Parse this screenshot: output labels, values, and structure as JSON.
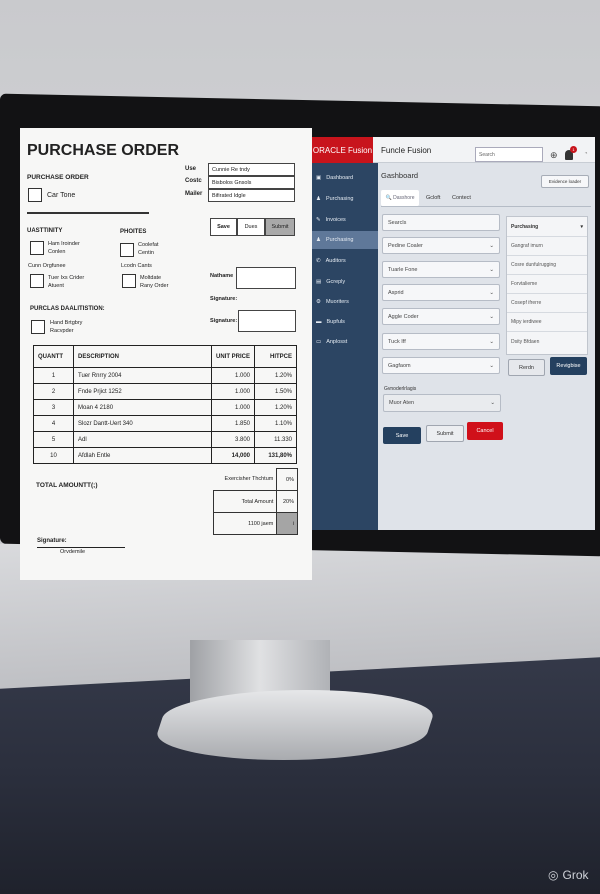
{
  "paper": {
    "title": "PURCHASE ORDER",
    "section_label": "PURCHASE ORDER",
    "section_checkbox": "Car Tone",
    "fields": [
      {
        "label": "Use",
        "value": "Cunnie Re tndy"
      },
      {
        "label": "Costc",
        "value": "Bisbolos Gnsols"
      },
      {
        "label": "Mailer",
        "value": "Bifirated Idgle"
      }
    ],
    "buttons": {
      "save": "Save",
      "dues": "Dues",
      "submit": "Submit"
    },
    "quantity_heading": "UASTTINITY",
    "phoites_heading": "PHOITES",
    "checks": [
      {
        "line1": "Ham Iroinder",
        "line2": "Conlen"
      },
      {
        "line1": "Coolefat",
        "line2": "Centin"
      },
      {
        "line1": "Tuer Ixs Crider",
        "line2": "Atuent"
      },
      {
        "line1": "Moltdate",
        "line2": "Rany Order"
      }
    ],
    "sub_left": "Cunn Orgfunee",
    "sub_right": "Lcodn Cants",
    "name_label": "Nathame",
    "signature_label_1": "Signature:",
    "signature_label_2": "Signature:",
    "evaluation_heading": "PURCLAS DAALITISTION:",
    "evaluation_check": {
      "line1": "Hand Brtgbry",
      "line2": "Racvpder"
    },
    "table": {
      "headers": [
        "QUANTT",
        "DESCRIPTION",
        "UNIT PRICE",
        "HITPCE"
      ],
      "rows": [
        [
          "1",
          "Tuer Rnrry 2004",
          "1.000",
          "1.20%"
        ],
        [
          "2",
          "Fnde Prjict 1252",
          "1.000",
          "1.50%"
        ],
        [
          "3",
          "Moan 4 2180",
          "1.000",
          "1.20%"
        ],
        [
          "4",
          "Slozr Dantt-Uert 340",
          "1.850",
          "1.10%"
        ],
        [
          "5",
          "Adl",
          "3.800",
          "11.330"
        ],
        [
          "10",
          "Afdlah Entle",
          "14,000",
          "131,80%"
        ]
      ]
    },
    "total_label": "TOTAL AMOUNTT(;)",
    "totals": [
      {
        "label": "Exercisher Thchtum",
        "value": "0%"
      },
      {
        "label": "Total Amount",
        "value": "20%"
      },
      {
        "label": "1100 jaem",
        "value": "i"
      }
    ],
    "signature_footer": "Signature:",
    "signature_name": "Orvdemile"
  },
  "app": {
    "brand": "ORACLE Fusion",
    "title": "Funcle Fusion",
    "search_placeholder": "Search",
    "notification_count": "1",
    "sidebar": [
      "Dashboard",
      "Purchasing",
      "Invoices",
      "Purchasing",
      "Auditors",
      "Gcreply",
      "Muoriters",
      "Bupfuls",
      "Anplosst"
    ],
    "page_title": "Gashboard",
    "header_button": "Evidence loader",
    "tabs": [
      "Dasshore",
      "Gcloft",
      "Contect"
    ],
    "search_input": "Searcls",
    "selects": [
      "Pedine Coaler",
      "Tuarle Fone",
      "Asprid",
      "Aggle Coder",
      "Tuck Iff",
      "Gagfaom"
    ],
    "group_label": "Gvnoderlrlagis",
    "group_select": "Muor Aten",
    "buttons": {
      "save": "Save",
      "submit": "Submit",
      "cancel": "Cancel"
    },
    "panel": {
      "title": "Purchasing",
      "items": [
        "Gangraf imurn",
        "Cosre dunfulrugging",
        "Forvtalieme",
        "Cosepf ifrerre",
        "Mipy ierdiwee",
        "Dsity Bfdaen"
      ],
      "reset": "Rerdn",
      "navigate": "Revigbise"
    },
    "colors": {
      "brand_red": "#c8141c",
      "navy": "#2c4563",
      "accent_navy": "#24405f"
    }
  },
  "watermark": "Grok"
}
